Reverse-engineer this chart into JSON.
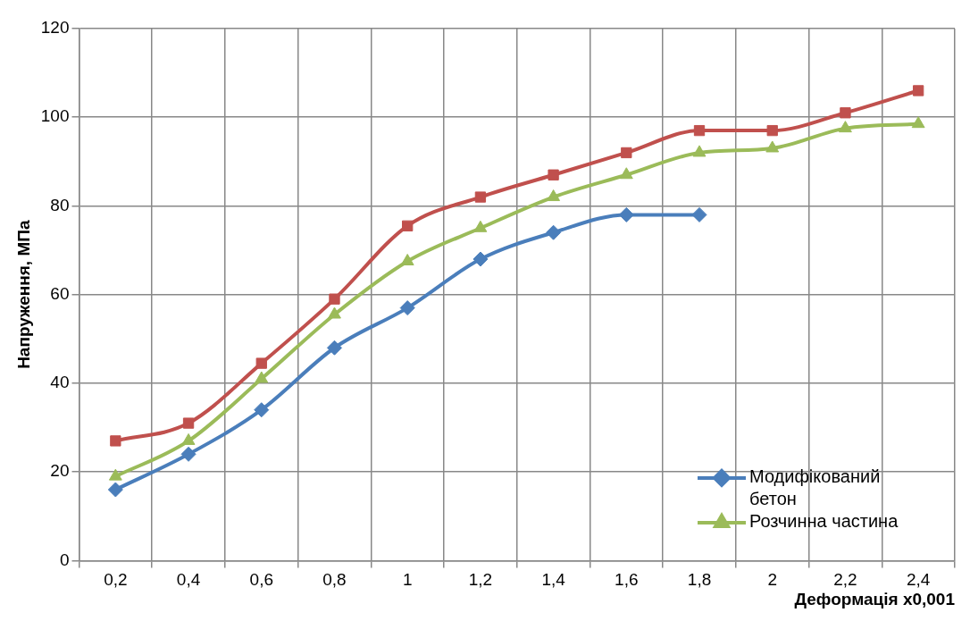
{
  "chart_data": {
    "type": "line",
    "xlabel": "Деформація x0,001",
    "ylabel": "Напруження, МПа",
    "categories": [
      "0,2",
      "0,4",
      "0,6",
      "0,8",
      "1",
      "1,2",
      "1,4",
      "1,6",
      "1,8",
      "2",
      "2,2",
      "2,4"
    ],
    "series": [
      {
        "name": "Модифікований бетон",
        "color": "#4a7ebb",
        "marker": "diamond",
        "values": [
          16,
          24,
          34,
          48,
          57,
          68,
          74,
          78,
          78,
          null,
          null,
          null
        ]
      },
      {
        "name": "Розчинна частина",
        "color": "#9bbb59",
        "marker": "triangle",
        "values": [
          19,
          27,
          41,
          55.5,
          67.5,
          75,
          82,
          87,
          92,
          93,
          97.5,
          98.5
        ]
      },
      {
        "color": "#c0504d",
        "marker": "square",
        "values": [
          27,
          31,
          44.5,
          59,
          75.5,
          82,
          87,
          92,
          97,
          97,
          101,
          106
        ]
      }
    ],
    "ylim": [
      0,
      120
    ],
    "yticks": [
      0,
      20,
      40,
      60,
      80,
      100,
      120
    ],
    "grid": true,
    "legend": "bottom right",
    "line_style": "solid"
  }
}
